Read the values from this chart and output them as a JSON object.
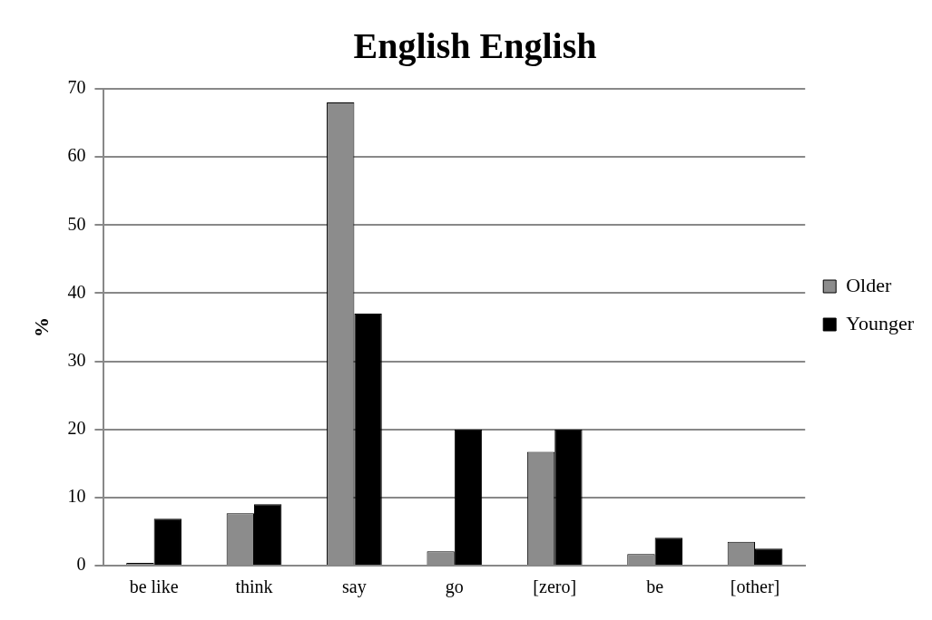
{
  "chart_data": {
    "type": "bar",
    "title": "English English",
    "ylabel": "%",
    "categories": [
      "be like",
      "think",
      "say",
      "go",
      "[zero]",
      "be",
      "[other]"
    ],
    "series": [
      {
        "name": "Older",
        "color": "#8c8c8c",
        "values": [
          0.4,
          7.7,
          68,
          2.1,
          16.7,
          1.7,
          3.5
        ]
      },
      {
        "name": "Younger",
        "color": "#000000",
        "values": [
          6.9,
          9.0,
          37,
          20,
          20,
          4.1,
          2.5
        ]
      }
    ],
    "ylim": [
      0,
      70
    ],
    "yticks": [
      0,
      10,
      20,
      30,
      40,
      50,
      60,
      70
    ],
    "grid": "y",
    "legend": "right"
  }
}
